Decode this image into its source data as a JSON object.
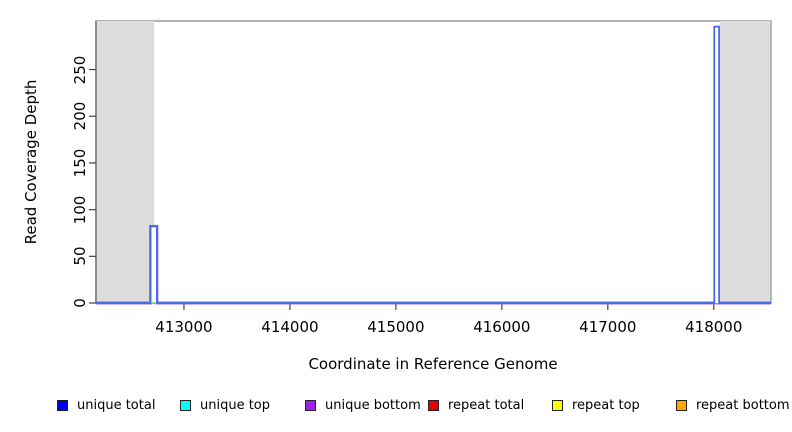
{
  "chart_data": {
    "type": "line",
    "title": "",
    "xlabel": "Coordinate in Reference Genome",
    "ylabel": "Read Coverage Depth",
    "xlim": [
      412170,
      418540
    ],
    "ylim": [
      0,
      302
    ],
    "x_ticks": [
      413000,
      414000,
      415000,
      416000,
      417000,
      418000
    ],
    "y_ticks": [
      0,
      50,
      100,
      150,
      200,
      250
    ],
    "grid": false,
    "box_color": "#808080",
    "tick_color": "#444444",
    "masked_region_color": "#dcdcdc",
    "masked_regions": [
      [
        412170,
        412720
      ],
      [
        418055,
        418540
      ]
    ],
    "series": [
      {
        "name": "unique total",
        "color": "#0000ff",
        "draw_color": "#4565e2",
        "points": [
          [
            412170,
            0
          ],
          [
            412685,
            0
          ],
          [
            412685,
            82
          ],
          [
            412745,
            82
          ],
          [
            412745,
            0
          ],
          [
            418005,
            0
          ],
          [
            418005,
            296
          ],
          [
            418050,
            296
          ],
          [
            418050,
            0
          ],
          [
            418540,
            0
          ]
        ]
      },
      {
        "name": "unique top",
        "color": "#00ffff",
        "draw_color": "#00e5ee",
        "points": [
          [
            412170,
            0
          ],
          [
            418540,
            0
          ]
        ]
      },
      {
        "name": "unique bottom",
        "color": "#a020f0",
        "draw_color": "#9b6ae0",
        "points": [
          [
            412170,
            0
          ],
          [
            412685,
            0
          ],
          [
            412685,
            82
          ],
          [
            412745,
            82
          ],
          [
            412745,
            0
          ],
          [
            418540,
            0
          ]
        ]
      },
      {
        "name": "repeat total",
        "color": "#ff0000",
        "draw_color": "#e80000",
        "points": [
          [
            412170,
            0
          ],
          [
            418540,
            0
          ]
        ]
      },
      {
        "name": "repeat top",
        "color": "#ffff00",
        "draw_color": "#f2e400",
        "points": [
          [
            412170,
            0
          ],
          [
            418540,
            0
          ]
        ]
      },
      {
        "name": "repeat bottom",
        "color": "#ffa500",
        "draw_color": "#f0a000",
        "points": [
          [
            412170,
            0
          ],
          [
            418540,
            0
          ]
        ]
      }
    ],
    "baseline_artifact": {
      "x": [
        412700,
        412732
      ],
      "y": 0,
      "color": "#79d879"
    }
  },
  "legend": {
    "items": [
      {
        "label": "unique total",
        "color": "#0000e8"
      },
      {
        "label": "unique top",
        "color": "#00ffff"
      },
      {
        "label": "unique bottom",
        "color": "#a020f0"
      },
      {
        "label": "repeat total",
        "color": "#e80000"
      },
      {
        "label": "repeat top",
        "color": "#ffff00"
      },
      {
        "label": "repeat bottom",
        "color": "#ffa500"
      }
    ]
  }
}
